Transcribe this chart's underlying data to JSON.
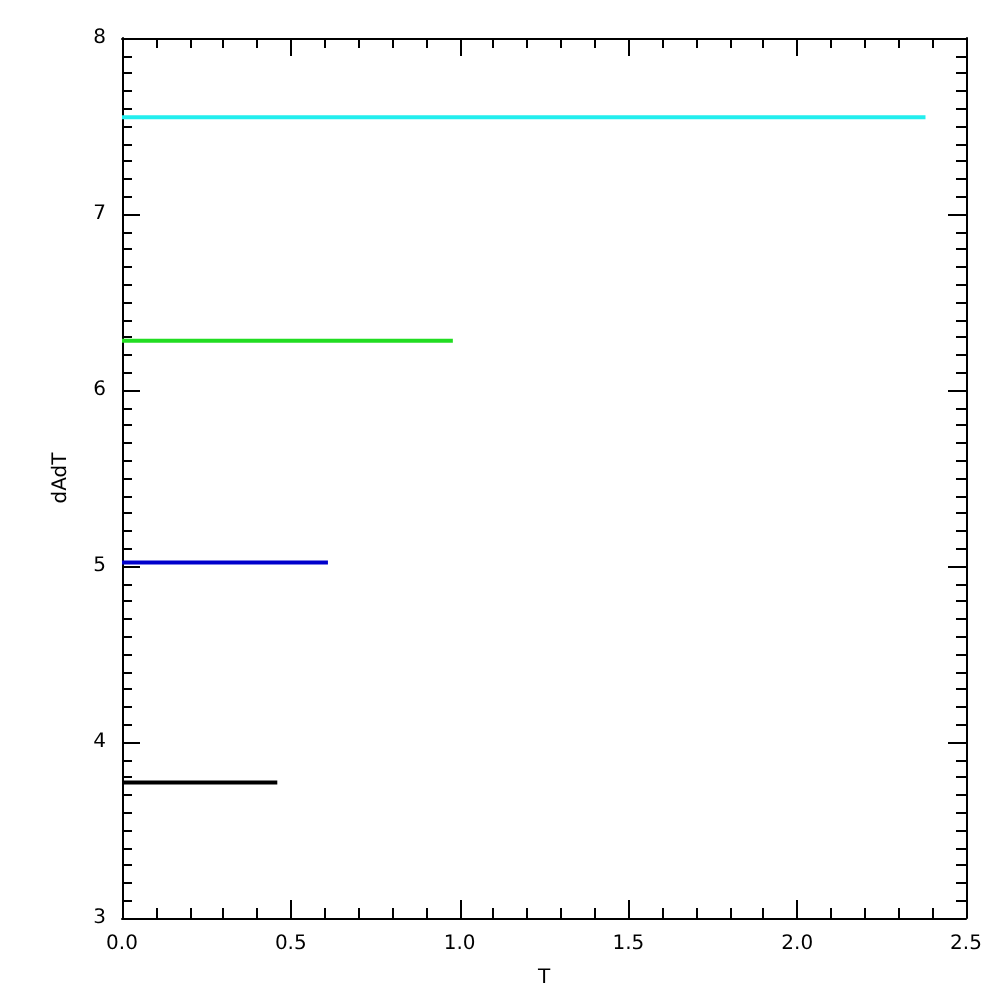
{
  "chart_data": {
    "type": "line",
    "xlabel": "T",
    "ylabel": "dAdT",
    "xlim": [
      0,
      2.5
    ],
    "ylim": [
      3,
      8
    ],
    "xticks": [
      {
        "value": 0,
        "label": "0.0"
      },
      {
        "value": 0.5,
        "label": "0.5"
      },
      {
        "value": 1,
        "label": "1.0"
      },
      {
        "value": 1.5,
        "label": "1.5"
      },
      {
        "value": 2,
        "label": "2.0"
      },
      {
        "value": 2.5,
        "label": "2.5"
      }
    ],
    "yticks": [
      3,
      4,
      5,
      6,
      7,
      8
    ],
    "grid": false,
    "marker": "none",
    "line_style": "solid",
    "series": [
      {
        "color": "#000000",
        "x": [
          0,
          0.46
        ],
        "values": [
          3.77,
          3.77
        ]
      },
      {
        "color": "#0000cc",
        "x": [
          0,
          0.61
        ],
        "values": [
          5.02,
          5.02
        ]
      },
      {
        "color": "#22dd22",
        "x": [
          0,
          0.98
        ],
        "values": [
          6.28,
          6.28
        ]
      },
      {
        "color": "#22eeee",
        "x": [
          0,
          2.38
        ],
        "values": [
          7.55,
          7.55
        ]
      }
    ]
  }
}
